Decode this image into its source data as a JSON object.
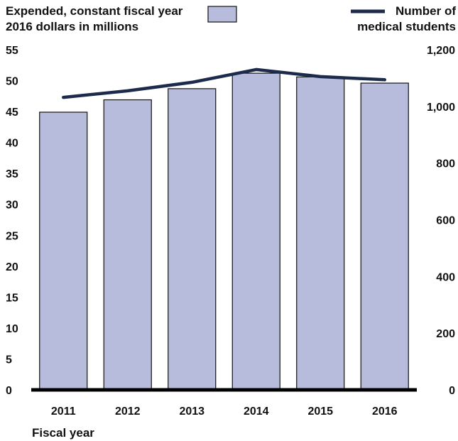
{
  "chart_data": {
    "type": "bar",
    "categories": [
      "2011",
      "2012",
      "2013",
      "2014",
      "2015",
      "2016"
    ],
    "series": [
      {
        "name": "Expended, constant fiscal year 2016 dollars in millions",
        "type": "bar",
        "axis": "left",
        "values": [
          44.9,
          46.9,
          48.7,
          51.2,
          50.6,
          49.6
        ],
        "color": "#b8bcdc"
      },
      {
        "name": "Number of medical students",
        "type": "line",
        "axis": "right",
        "values": [
          1032,
          1055,
          1085,
          1130,
          1105,
          1094
        ],
        "color": "#1c2b4b"
      }
    ],
    "legend": {
      "bar_label_line1": "Expended, constant fiscal year",
      "bar_label_line2": "2016 dollars in millions",
      "line_label_line1": "Number of",
      "line_label_line2": "medical students"
    },
    "y_left": {
      "ylim": [
        0,
        55
      ],
      "ticks": [
        "0",
        "5",
        "10",
        "15",
        "20",
        "25",
        "30",
        "35",
        "40",
        "45",
        "50",
        "55"
      ]
    },
    "y_right": {
      "ylim": [
        0,
        1200
      ],
      "ticks": [
        "0",
        "200",
        "400",
        "600",
        "800",
        "1,000",
        "1,200"
      ]
    },
    "xlabel": "Fiscal year",
    "grid": false,
    "colors": {
      "bar_fill": "#b8bcdc",
      "bar_stroke": "#111111",
      "line": "#1c2b4b",
      "baseline": "#000000"
    }
  }
}
